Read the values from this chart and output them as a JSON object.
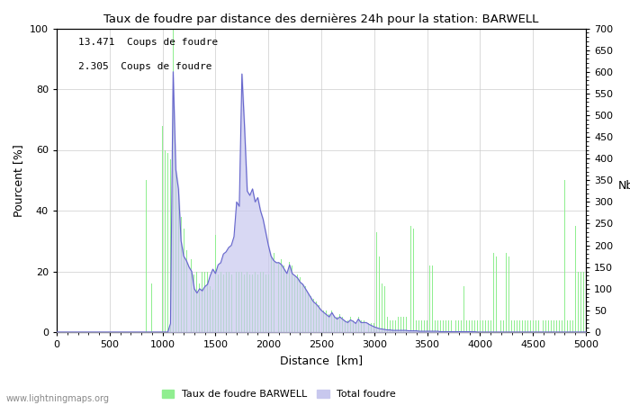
{
  "title": "Taux de foudre par distance des dernières 24h pour la station: BARWELL",
  "xlabel": "Distance  [km]",
  "ylabel_left": "Pourcent [%]",
  "ylabel_right": "Nb",
  "annotation_line1": "13.471  Coups de foudre",
  "annotation_line2": "2.305  Coups de foudre",
  "legend_green": "Taux de foudre BARWELL",
  "legend_blue": "Total foudre",
  "watermark": "www.lightningmaps.org",
  "xlim": [
    0,
    5000
  ],
  "ylim_left": [
    0,
    100
  ],
  "ylim_right": [
    0,
    700
  ],
  "xticks": [
    0,
    500,
    1000,
    1500,
    2000,
    2500,
    3000,
    3500,
    4000,
    4500,
    5000
  ],
  "yticks_left": [
    0,
    20,
    40,
    60,
    80,
    100
  ],
  "yticks_right": [
    0,
    50,
    100,
    150,
    200,
    250,
    300,
    350,
    400,
    450,
    500,
    550,
    600,
    650,
    700
  ],
  "green_color": "#90EE90",
  "blue_fill_color": "#c8c8ee",
  "blue_line_color": "#6666cc",
  "bg_color": "#ffffff",
  "grid_color": "#cccccc",
  "green_bars": [
    [
      850,
      50
    ],
    [
      900,
      16
    ],
    [
      1000,
      68
    ],
    [
      1025,
      60
    ],
    [
      1050,
      59
    ],
    [
      1075,
      57
    ],
    [
      1100,
      100
    ],
    [
      1125,
      53
    ],
    [
      1150,
      47
    ],
    [
      1175,
      38
    ],
    [
      1200,
      34
    ],
    [
      1225,
      27
    ],
    [
      1250,
      25
    ],
    [
      1275,
      24
    ],
    [
      1300,
      19
    ],
    [
      1325,
      20
    ],
    [
      1350,
      16
    ],
    [
      1375,
      20
    ],
    [
      1400,
      20
    ],
    [
      1425,
      20
    ],
    [
      1450,
      15
    ],
    [
      1475,
      14
    ],
    [
      1500,
      32
    ],
    [
      1525,
      19
    ],
    [
      1550,
      20
    ],
    [
      1575,
      19
    ],
    [
      1600,
      20
    ],
    [
      1625,
      20
    ],
    [
      1650,
      19
    ],
    [
      1675,
      20
    ],
    [
      1700,
      20
    ],
    [
      1725,
      20
    ],
    [
      1750,
      20
    ],
    [
      1775,
      19
    ],
    [
      1800,
      20
    ],
    [
      1825,
      19
    ],
    [
      1850,
      19
    ],
    [
      1875,
      20
    ],
    [
      1900,
      19
    ],
    [
      1925,
      20
    ],
    [
      1950,
      20
    ],
    [
      1975,
      19
    ],
    [
      2000,
      19
    ],
    [
      2025,
      25
    ],
    [
      2050,
      26
    ],
    [
      2075,
      23
    ],
    [
      2100,
      23
    ],
    [
      2125,
      24
    ],
    [
      2150,
      22
    ],
    [
      2175,
      19
    ],
    [
      2200,
      23
    ],
    [
      2225,
      22
    ],
    [
      2250,
      18
    ],
    [
      2275,
      19
    ],
    [
      2300,
      18
    ],
    [
      2325,
      16
    ],
    [
      2350,
      15
    ],
    [
      2375,
      13
    ],
    [
      2400,
      12
    ],
    [
      2425,
      11
    ],
    [
      2450,
      10
    ],
    [
      2475,
      9
    ],
    [
      2500,
      8
    ],
    [
      2525,
      7
    ],
    [
      2550,
      7
    ],
    [
      2575,
      6
    ],
    [
      2600,
      7
    ],
    [
      2625,
      5
    ],
    [
      2650,
      5
    ],
    [
      2675,
      6
    ],
    [
      2700,
      5
    ],
    [
      2725,
      4
    ],
    [
      2750,
      4
    ],
    [
      2775,
      5
    ],
    [
      2800,
      4
    ],
    [
      2825,
      3
    ],
    [
      2850,
      5
    ],
    [
      2875,
      4
    ],
    [
      2900,
      4
    ],
    [
      2925,
      4
    ],
    [
      2950,
      3
    ],
    [
      2975,
      3
    ],
    [
      3000,
      3
    ],
    [
      3025,
      33
    ],
    [
      3050,
      25
    ],
    [
      3075,
      16
    ],
    [
      3100,
      15
    ],
    [
      3125,
      5
    ],
    [
      3150,
      4
    ],
    [
      3175,
      4
    ],
    [
      3200,
      4
    ],
    [
      3225,
      5
    ],
    [
      3250,
      5
    ],
    [
      3275,
      5
    ],
    [
      3300,
      5
    ],
    [
      3325,
      4
    ],
    [
      3350,
      35
    ],
    [
      3375,
      34
    ],
    [
      3400,
      4
    ],
    [
      3425,
      4
    ],
    [
      3450,
      4
    ],
    [
      3475,
      4
    ],
    [
      3500,
      4
    ],
    [
      3525,
      22
    ],
    [
      3550,
      22
    ],
    [
      3575,
      4
    ],
    [
      3600,
      4
    ],
    [
      3625,
      4
    ],
    [
      3650,
      4
    ],
    [
      3675,
      4
    ],
    [
      3700,
      4
    ],
    [
      3725,
      4
    ],
    [
      3750,
      4
    ],
    [
      3775,
      4
    ],
    [
      3800,
      4
    ],
    [
      3825,
      4
    ],
    [
      3850,
      15
    ],
    [
      3875,
      4
    ],
    [
      3900,
      4
    ],
    [
      3925,
      4
    ],
    [
      3950,
      4
    ],
    [
      3975,
      4
    ],
    [
      4000,
      4
    ],
    [
      4025,
      4
    ],
    [
      4050,
      4
    ],
    [
      4075,
      4
    ],
    [
      4100,
      4
    ],
    [
      4125,
      26
    ],
    [
      4150,
      25
    ],
    [
      4175,
      4
    ],
    [
      4200,
      4
    ],
    [
      4225,
      4
    ],
    [
      4250,
      26
    ],
    [
      4275,
      25
    ],
    [
      4300,
      4
    ],
    [
      4325,
      4
    ],
    [
      4350,
      4
    ],
    [
      4375,
      4
    ],
    [
      4400,
      4
    ],
    [
      4425,
      4
    ],
    [
      4450,
      4
    ],
    [
      4475,
      4
    ],
    [
      4500,
      4
    ],
    [
      4525,
      4
    ],
    [
      4550,
      4
    ],
    [
      4575,
      4
    ],
    [
      4600,
      4
    ],
    [
      4625,
      4
    ],
    [
      4650,
      4
    ],
    [
      4675,
      4
    ],
    [
      4700,
      4
    ],
    [
      4725,
      4
    ],
    [
      4750,
      4
    ],
    [
      4775,
      4
    ],
    [
      4800,
      50
    ],
    [
      4825,
      4
    ],
    [
      4850,
      4
    ],
    [
      4875,
      4
    ],
    [
      4900,
      35
    ],
    [
      4925,
      20
    ],
    [
      4950,
      20
    ],
    [
      4975,
      20
    ]
  ],
  "blue_line": [
    [
      0,
      0
    ],
    [
      1050,
      0
    ],
    [
      1075,
      20
    ],
    [
      1100,
      600
    ],
    [
      1125,
      375
    ],
    [
      1150,
      330
    ],
    [
      1175,
      210
    ],
    [
      1200,
      175
    ],
    [
      1225,
      165
    ],
    [
      1250,
      150
    ],
    [
      1275,
      140
    ],
    [
      1300,
      100
    ],
    [
      1325,
      90
    ],
    [
      1350,
      100
    ],
    [
      1375,
      95
    ],
    [
      1400,
      105
    ],
    [
      1425,
      110
    ],
    [
      1450,
      130
    ],
    [
      1475,
      145
    ],
    [
      1500,
      135
    ],
    [
      1525,
      155
    ],
    [
      1550,
      160
    ],
    [
      1575,
      180
    ],
    [
      1600,
      185
    ],
    [
      1625,
      195
    ],
    [
      1650,
      200
    ],
    [
      1675,
      220
    ],
    [
      1700,
      300
    ],
    [
      1725,
      290
    ],
    [
      1750,
      595
    ],
    [
      1775,
      470
    ],
    [
      1800,
      325
    ],
    [
      1825,
      315
    ],
    [
      1850,
      330
    ],
    [
      1875,
      300
    ],
    [
      1900,
      310
    ],
    [
      1925,
      280
    ],
    [
      1950,
      260
    ],
    [
      1975,
      230
    ],
    [
      2000,
      200
    ],
    [
      2025,
      175
    ],
    [
      2050,
      165
    ],
    [
      2075,
      160
    ],
    [
      2100,
      160
    ],
    [
      2125,
      155
    ],
    [
      2150,
      145
    ],
    [
      2175,
      135
    ],
    [
      2200,
      155
    ],
    [
      2225,
      135
    ],
    [
      2250,
      130
    ],
    [
      2275,
      125
    ],
    [
      2300,
      115
    ],
    [
      2325,
      110
    ],
    [
      2350,
      100
    ],
    [
      2375,
      90
    ],
    [
      2400,
      80
    ],
    [
      2425,
      70
    ],
    [
      2450,
      65
    ],
    [
      2475,
      58
    ],
    [
      2500,
      50
    ],
    [
      2525,
      45
    ],
    [
      2550,
      40
    ],
    [
      2575,
      35
    ],
    [
      2600,
      45
    ],
    [
      2625,
      35
    ],
    [
      2650,
      30
    ],
    [
      2675,
      35
    ],
    [
      2700,
      30
    ],
    [
      2725,
      25
    ],
    [
      2750,
      22
    ],
    [
      2775,
      28
    ],
    [
      2800,
      25
    ],
    [
      2825,
      20
    ],
    [
      2850,
      30
    ],
    [
      2875,
      22
    ],
    [
      2900,
      22
    ],
    [
      2925,
      22
    ],
    [
      2950,
      18
    ],
    [
      2975,
      15
    ],
    [
      3000,
      12
    ],
    [
      3025,
      10
    ],
    [
      3050,
      8
    ],
    [
      3075,
      7
    ],
    [
      3100,
      6
    ],
    [
      3125,
      5
    ],
    [
      3150,
      5
    ],
    [
      3175,
      4
    ],
    [
      3200,
      4
    ],
    [
      3225,
      4
    ],
    [
      3250,
      4
    ],
    [
      3275,
      4
    ],
    [
      3300,
      4
    ],
    [
      3325,
      3
    ],
    [
      3350,
      3
    ],
    [
      3375,
      3
    ],
    [
      3400,
      3
    ],
    [
      3425,
      2
    ],
    [
      3450,
      2
    ],
    [
      3475,
      2
    ],
    [
      3500,
      2
    ],
    [
      3525,
      2
    ],
    [
      3550,
      2
    ],
    [
      3575,
      2
    ],
    [
      3600,
      2
    ],
    [
      3625,
      1
    ],
    [
      3650,
      1
    ],
    [
      3675,
      1
    ],
    [
      3700,
      1
    ],
    [
      3725,
      1
    ],
    [
      3750,
      1
    ],
    [
      3775,
      1
    ],
    [
      3800,
      1
    ],
    [
      3825,
      1
    ],
    [
      3850,
      1
    ],
    [
      3875,
      1
    ],
    [
      3900,
      1
    ],
    [
      3925,
      1
    ],
    [
      3950,
      1
    ],
    [
      3975,
      0
    ],
    [
      5000,
      0
    ]
  ]
}
